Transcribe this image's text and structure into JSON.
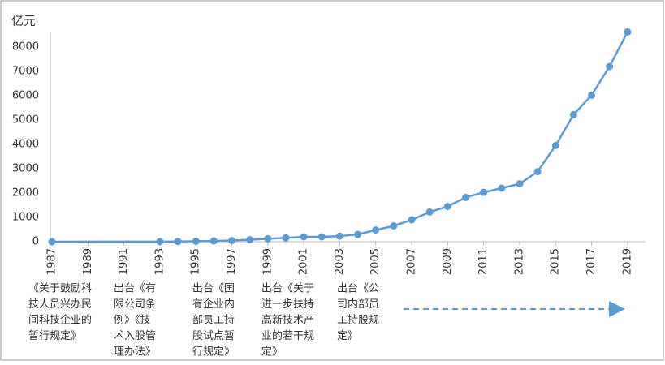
{
  "chart_data": {
    "type": "line",
    "y_unit": "亿元",
    "x": [
      1987,
      1993,
      1994,
      1995,
      1996,
      1997,
      1998,
      1999,
      2000,
      2001,
      2002,
      2003,
      2004,
      2005,
      2006,
      2007,
      2008,
      2009,
      2010,
      2011,
      2012,
      2013,
      2014,
      2015,
      2016,
      2017,
      2018,
      2019
    ],
    "series": [
      {
        "name": "亿元",
        "color": "#5b9bd5",
        "values": [
          0,
          5,
          10,
          20,
          30,
          50,
          80,
          120,
          160,
          200,
          200,
          230,
          300,
          480,
          650,
          900,
          1220,
          1450,
          1820,
          2030,
          2200,
          2380,
          2880,
          3950,
          5220,
          6020,
          7200,
          8620
        ]
      }
    ],
    "xlim": [
      1987,
      2020
    ],
    "ylim": [
      0,
      8600
    ],
    "xticks": [
      1987,
      1989,
      1991,
      1993,
      1995,
      1997,
      1999,
      2001,
      2003,
      2005,
      2007,
      2009,
      2011,
      2013,
      2015,
      2017,
      2019
    ],
    "yticks": [
      0,
      1000,
      2000,
      3000,
      4000,
      5000,
      6000,
      7000,
      8000
    ],
    "grid": false,
    "annotations": [
      [
        "《关于鼓励科",
        "技人员兴办民",
        "间科技企业的",
        "暂行规定》"
      ],
      [
        "出台《有",
        "限公司条",
        "例》《技",
        "术入股管",
        "理办法》"
      ],
      [
        "出台《国",
        "有企业内",
        "部员工持",
        "股试点暂",
        "行规定》"
      ],
      [
        "出台《关于",
        "进一步扶持",
        "高新技术产",
        "业的若干规",
        "定》"
      ],
      [
        "出台《公",
        "司内部员",
        "工持股规",
        "定》"
      ]
    ]
  }
}
